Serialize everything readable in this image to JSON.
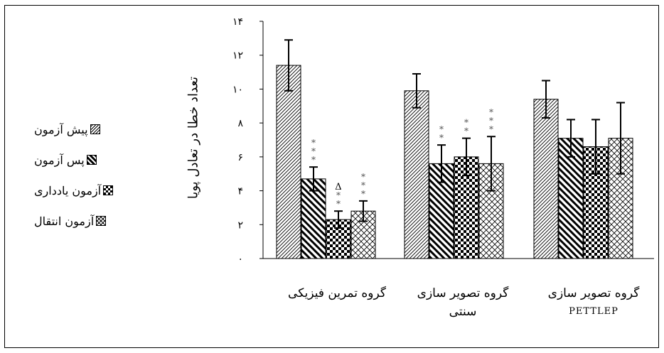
{
  "chart_data": {
    "type": "bar",
    "ylabel": "تعداد خطا در تعادل پویا",
    "ylim": [
      0,
      14
    ],
    "yticks": [
      "۰",
      "۲",
      "۴",
      "۶",
      "۸",
      "۱۰",
      "۱۲",
      "۱۴"
    ],
    "categories": [
      {
        "line1": "گروه تمرین فیزیکی",
        "line2": ""
      },
      {
        "line1": "گروه تصویر سازی",
        "line2": "سنتی"
      },
      {
        "line1": "گروه تصویر سازی",
        "line2": "PETTLEP"
      }
    ],
    "series": [
      {
        "name": "پیش آزمون",
        "pattern": "fine-diagonal",
        "values": [
          11.4,
          9.9,
          9.4
        ],
        "errors": [
          1.5,
          1.0,
          1.1
        ]
      },
      {
        "name": "پس آزمون",
        "pattern": "bold-diagonal",
        "values": [
          4.7,
          5.6,
          7.1
        ],
        "errors": [
          0.7,
          1.1,
          1.1
        ]
      },
      {
        "name": "آزمون یادداری",
        "pattern": "checker",
        "values": [
          2.3,
          6.0,
          6.6
        ],
        "errors": [
          0.5,
          1.1,
          1.6
        ]
      },
      {
        "name": "آزمون انتقال",
        "pattern": "cross-hatch",
        "values": [
          2.8,
          5.6,
          7.1
        ],
        "errors": [
          0.6,
          1.6,
          2.1
        ]
      }
    ],
    "annotations": [
      {
        "category": 0,
        "series": 1,
        "marks": [
          "*",
          "*",
          "*"
        ]
      },
      {
        "category": 0,
        "series": 2,
        "marks": [
          "Δ",
          "*",
          "*"
        ]
      },
      {
        "category": 0,
        "series": 3,
        "marks": [
          "*",
          "*",
          "*"
        ]
      },
      {
        "category": 1,
        "series": 1,
        "marks": [
          "*",
          "*"
        ]
      },
      {
        "category": 1,
        "series": 2,
        "marks": [
          "*",
          "*"
        ]
      },
      {
        "category": 1,
        "series": 3,
        "marks": [
          "*",
          "*",
          "*"
        ]
      }
    ],
    "legend_position": "left"
  }
}
